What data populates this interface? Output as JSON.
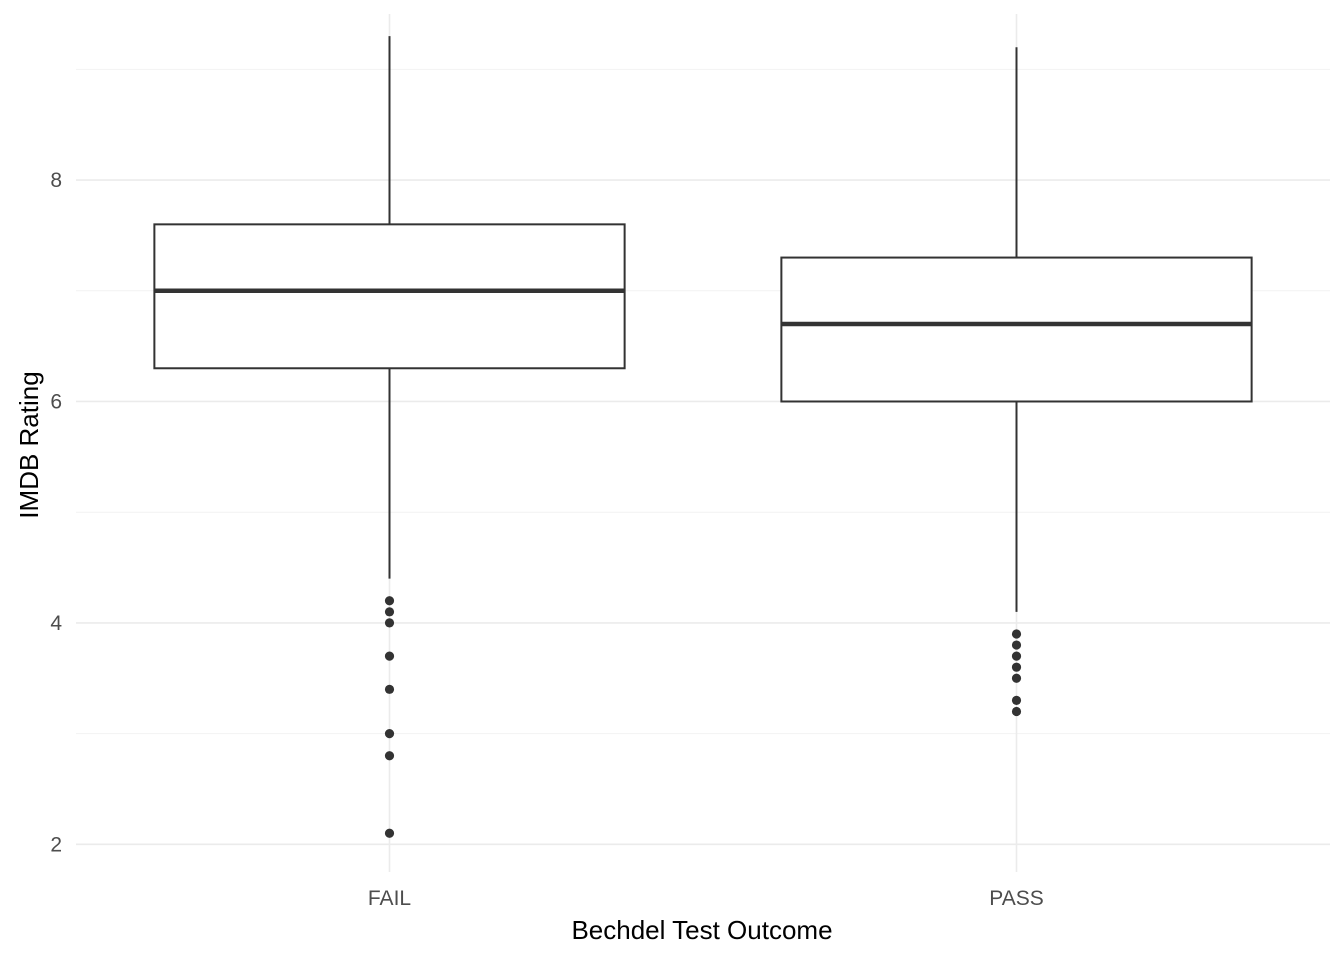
{
  "chart_data": {
    "type": "boxplot",
    "title": "",
    "xlabel": "Bechdel Test Outcome",
    "ylabel": "IMDB Rating",
    "categories": [
      "FAIL",
      "PASS"
    ],
    "ylim": [
      1.75,
      9.5
    ],
    "yticks": [
      2,
      4,
      6,
      8
    ],
    "grid": true,
    "boxes": [
      {
        "category": "FAIL",
        "whisker_low": 4.4,
        "q1": 6.3,
        "median": 7.0,
        "q3": 7.6,
        "whisker_high": 9.3,
        "outliers": [
          4.2,
          4.1,
          4.0,
          3.7,
          3.4,
          3.0,
          2.8,
          2.1
        ]
      },
      {
        "category": "PASS",
        "whisker_low": 4.1,
        "q1": 6.0,
        "median": 6.7,
        "q3": 7.3,
        "whisker_high": 9.2,
        "outliers": [
          3.9,
          3.8,
          3.7,
          3.6,
          3.5,
          3.3,
          3.2
        ]
      }
    ],
    "colors": {
      "box_line": "#333333",
      "box_fill": "#ffffff",
      "outlier": "#333333",
      "grid_major": "#ebebeb",
      "grid_minor": "#f2f2f2",
      "tick_text": "#4d4d4d",
      "axis_title": "#000000"
    }
  }
}
